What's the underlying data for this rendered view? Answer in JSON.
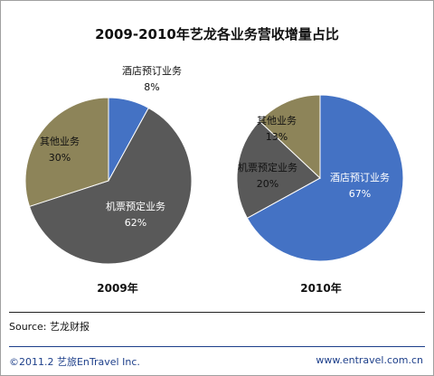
{
  "title": "2009-2010年艺龙各业务营收增量占比",
  "chart_data": [
    {
      "type": "pie",
      "year_label": "2009年",
      "slices": [
        {
          "label": "酒店预订业务",
          "value": 8,
          "value_label": "8%",
          "color": "#4472c4"
        },
        {
          "label": "机票预定业务",
          "value": 62,
          "value_label": "62%",
          "color": "#595959"
        },
        {
          "label": "其他业务",
          "value": 30,
          "value_label": "30%",
          "color": "#8d8459"
        }
      ]
    },
    {
      "type": "pie",
      "year_label": "2010年",
      "slices": [
        {
          "label": "酒店预订业务",
          "value": 67,
          "value_label": "67%",
          "color": "#4472c4"
        },
        {
          "label": "机票预定业务",
          "value": 20,
          "value_label": "20%",
          "color": "#595959"
        },
        {
          "label": "其他业务",
          "value": 13,
          "value_label": "13%",
          "color": "#8d8459"
        }
      ]
    }
  ],
  "source": "Source:  艺龙财报",
  "footer": {
    "copyright": "©2011.2  艺旅EnTravel  Inc.",
    "website": "www.entravel.com.cn"
  }
}
